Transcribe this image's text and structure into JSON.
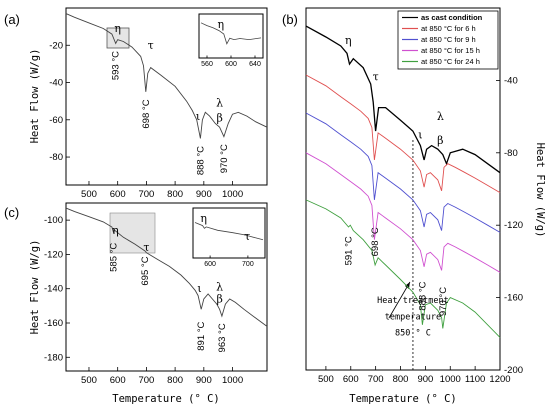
{
  "chart_data": [
    {
      "panel_label": "(a)",
      "type": "line",
      "xlabel": "",
      "ylabel": "Heat Flow (W/g)",
      "xlim": [
        420,
        1120
      ],
      "ylim": [
        -95,
        0
      ],
      "x_ticks": [
        500,
        600,
        700,
        800,
        900,
        1000
      ],
      "y_ticks": [
        -80,
        -60,
        -40,
        -20
      ],
      "series": [
        {
          "x": [
            420,
            450,
            500,
            550,
            580,
            593,
            600,
            620,
            650,
            680,
            690,
            698,
            705,
            715,
            750,
            800,
            840,
            860,
            875,
            888,
            895,
            905,
            920,
            940,
            955,
            970,
            985,
            1000,
            1020,
            1050,
            1080,
            1120
          ],
          "y": [
            -3,
            -5,
            -8,
            -11,
            -14,
            -19,
            -17,
            -18,
            -21,
            -26,
            -31,
            -45,
            -35,
            -32,
            -36,
            -42,
            -50,
            -55,
            -60,
            -70,
            -60,
            -56,
            -58,
            -62,
            -64,
            -69,
            -62,
            -57,
            -56,
            -58,
            -61,
            -64
          ]
        }
      ],
      "annotations": [
        {
          "text": "η",
          "x": 600,
          "y": -13
        },
        {
          "text": "593 °C",
          "x": 593,
          "y": -22
        },
        {
          "text": "τ",
          "x": 715,
          "y": -22
        },
        {
          "text": "698 °C",
          "x": 698,
          "y": -48
        },
        {
          "text": "ι",
          "x": 880,
          "y": -60
        },
        {
          "text": "λ",
          "x": 955,
          "y": -53
        },
        {
          "text": "β",
          "x": 955,
          "y": -61
        },
        {
          "text": "888 °C",
          "x": 888,
          "y": -73
        },
        {
          "text": "970 °C",
          "x": 970,
          "y": -72
        }
      ],
      "inset": {
        "label": "η",
        "x_ticks": [
          560,
          600,
          640
        ],
        "xlim": [
          550,
          650
        ],
        "x": [
          550,
          560,
          570,
          580,
          588,
          593,
          598,
          605,
          615,
          630,
          650
        ],
        "y": [
          0.9,
          0.8,
          0.72,
          0.62,
          0.5,
          0.15,
          0.35,
          0.3,
          0.34,
          0.3,
          0.36
        ]
      }
    },
    {
      "panel_label": "(c)",
      "type": "line",
      "xlabel": "Temperature (° C)",
      "ylabel": "Heat Flow (W/g)",
      "xlim": [
        420,
        1120
      ],
      "ylim": [
        -188,
        -90
      ],
      "x_ticks": [
        500,
        600,
        700,
        800,
        900,
        1000
      ],
      "y_ticks": [
        -180,
        -160,
        -140,
        -120,
        -100
      ],
      "series": [
        {
          "x": [
            420,
            450,
            500,
            550,
            580,
            585,
            590,
            620,
            660,
            695,
            700,
            740,
            780,
            820,
            850,
            870,
            880,
            891,
            900,
            915,
            930,
            945,
            955,
            963,
            975,
            990,
            1010,
            1040,
            1080,
            1120
          ],
          "y": [
            -93,
            -95,
            -98,
            -101,
            -104,
            -107,
            -106,
            -110,
            -114,
            -118,
            -119,
            -123,
            -127,
            -132,
            -137,
            -141,
            -144,
            -152,
            -146,
            -143,
            -146,
            -149,
            -152,
            -156,
            -149,
            -146,
            -148,
            -152,
            -157,
            -162
          ]
        }
      ],
      "annotations": [
        {
          "text": "η",
          "x": 592,
          "y": -108
        },
        {
          "text": "585 °C",
          "x": 585,
          "y": -112
        },
        {
          "text": "τ",
          "x": 700,
          "y": -118
        },
        {
          "text": "695 °C",
          "x": 695,
          "y": -120
        },
        {
          "text": "ι",
          "x": 885,
          "y": -142
        },
        {
          "text": "λ",
          "x": 955,
          "y": -141
        },
        {
          "text": "β",
          "x": 955,
          "y": -148
        },
        {
          "text": "891 °C",
          "x": 891,
          "y": -158
        },
        {
          "text": "963 °C",
          "x": 963,
          "y": -159
        }
      ],
      "inset": {
        "labels": [
          "η",
          "τ"
        ],
        "x_ticks": [
          600,
          700
        ],
        "xlim": [
          560,
          740
        ],
        "x": [
          560,
          580,
          585,
          590,
          620,
          660,
          695,
          700,
          720,
          740
        ],
        "y": [
          0.75,
          0.66,
          0.58,
          0.62,
          0.52,
          0.45,
          0.38,
          0.36,
          0.3,
          0.24
        ]
      }
    },
    {
      "panel_label": "(b)",
      "type": "line",
      "xlabel": "Temperature (° C)",
      "ylabel": "Heat Flow (W/g)",
      "xlim": [
        420,
        1200
      ],
      "ylim": [
        -200,
        0
      ],
      "x_ticks": [
        500,
        600,
        700,
        800,
        900,
        1000,
        1100,
        1200
      ],
      "y_ticks": [
        -200,
        -160,
        -120,
        -80,
        -40
      ],
      "legend_position": "top-right",
      "series": [
        {
          "name": "as cast condition",
          "color": "#000000",
          "x": [
            420,
            500,
            560,
            585,
            595,
            610,
            650,
            680,
            690,
            700,
            712,
            740,
            800,
            850,
            880,
            895,
            905,
            925,
            950,
            970,
            985,
            1000,
            1050,
            1100,
            1150,
            1200
          ],
          "y": [
            -10,
            -16,
            -21,
            -25,
            -31,
            -28,
            -33,
            -42,
            -52,
            -68,
            -55,
            -55,
            -62,
            -68,
            -76,
            -84,
            -78,
            -76,
            -78,
            -81,
            -86,
            -80,
            -78,
            -81,
            -86,
            -91
          ]
        },
        {
          "name": "at 850 °C for 6 h",
          "color": "#e05050",
          "x": [
            420,
            500,
            560,
            600,
            640,
            670,
            685,
            695,
            710,
            740,
            800,
            850,
            880,
            895,
            905,
            920,
            950,
            965,
            975,
            990,
            1020,
            1060,
            1100,
            1150,
            1200
          ],
          "y": [
            -37,
            -43,
            -49,
            -53,
            -57,
            -61,
            -66,
            -84,
            -69,
            -72,
            -78,
            -84,
            -90,
            -99,
            -92,
            -91,
            -95,
            -101,
            -88,
            -86,
            -88,
            -91,
            -94,
            -98,
            -102
          ]
        },
        {
          "name": "at 850 °C for 9 h",
          "color": "#5050d0",
          "x": [
            420,
            500,
            560,
            600,
            640,
            670,
            685,
            695,
            710,
            740,
            800,
            850,
            880,
            895,
            905,
            920,
            950,
            965,
            975,
            990,
            1020,
            1060,
            1100,
            1150,
            1200
          ],
          "y": [
            -58,
            -64,
            -70,
            -74,
            -78,
            -82,
            -87,
            -106,
            -91,
            -94,
            -100,
            -106,
            -112,
            -121,
            -114,
            -113,
            -117,
            -123,
            -110,
            -108,
            -110,
            -113,
            -116,
            -120,
            -124
          ]
        },
        {
          "name": "at 850 °C for 15 h",
          "color": "#d050d0",
          "x": [
            420,
            500,
            560,
            600,
            640,
            670,
            685,
            695,
            710,
            740,
            800,
            850,
            880,
            895,
            905,
            920,
            950,
            965,
            975,
            990,
            1020,
            1060,
            1100,
            1150,
            1200
          ],
          "y": [
            -80,
            -86,
            -92,
            -96,
            -100,
            -104,
            -109,
            -128,
            -113,
            -116,
            -122,
            -128,
            -134,
            -143,
            -136,
            -135,
            -139,
            -145,
            -132,
            -130,
            -132,
            -135,
            -138,
            -142,
            -146
          ]
        },
        {
          "name": "at 850 °C for 24 h",
          "color": "#40a040",
          "x": [
            420,
            500,
            560,
            591,
            598,
            610,
            650,
            685,
            698,
            710,
            740,
            800,
            850,
            880,
            888,
            900,
            920,
            950,
            965,
            970,
            985,
            1000,
            1050,
            1100,
            1150,
            1200
          ],
          "y": [
            -106,
            -111,
            -116,
            -121,
            -120,
            -123,
            -128,
            -134,
            -142,
            -138,
            -142,
            -150,
            -157,
            -164,
            -175,
            -164,
            -163,
            -167,
            -171,
            -177,
            -163,
            -160,
            -163,
            -168,
            -175,
            -182
          ]
        }
      ],
      "reference_line": {
        "x": 850,
        "style": "dashed"
      },
      "annotations": [
        {
          "text": "η",
          "x": 590,
          "y": -20
        },
        {
          "text": "τ",
          "x": 700,
          "y": -40
        },
        {
          "text": "ι",
          "x": 880,
          "y": -72
        },
        {
          "text": "λ",
          "x": 960,
          "y": -62
        },
        {
          "text": "β",
          "x": 960,
          "y": -75
        },
        {
          "text": "591 °C",
          "x": 591,
          "y": -125
        },
        {
          "text": "698 °C",
          "x": 698,
          "y": -120
        },
        {
          "text": "888 °C",
          "x": 888,
          "y": -150
        },
        {
          "text": "970 °C",
          "x": 970,
          "y": -153
        },
        {
          "text": "Heat treatment",
          "x": 850,
          "y": -163
        },
        {
          "text": "temperature",
          "x": 850,
          "y": -172
        },
        {
          "text": "850 ° C",
          "x": 850,
          "y": -181
        }
      ]
    }
  ]
}
